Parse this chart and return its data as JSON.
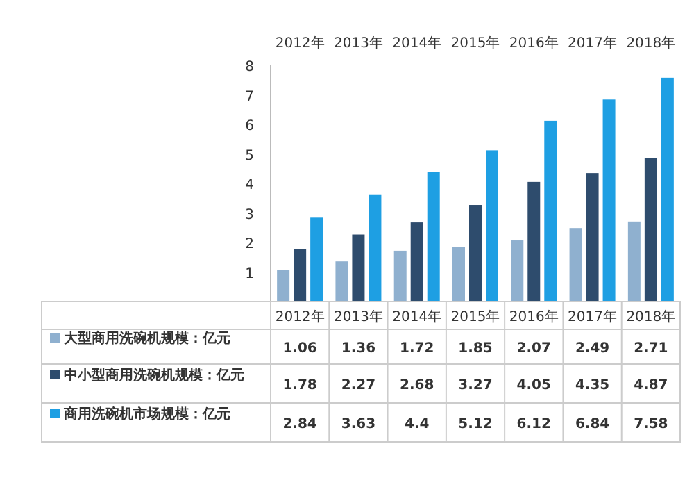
{
  "chart_data": {
    "type": "bar",
    "categories": [
      "2012年",
      "2013年",
      "2014年",
      "2015年",
      "2016年",
      "2017年",
      "2018年"
    ],
    "series": [
      {
        "name": "大型商用洗碗机规模：亿元",
        "color": "#8fb0cf",
        "values": [
          1.06,
          1.36,
          1.72,
          1.85,
          2.07,
          2.49,
          2.71
        ]
      },
      {
        "name": "中小型商用洗碗机规模：亿元",
        "color": "#2e4c6d",
        "values": [
          1.78,
          2.27,
          2.68,
          3.27,
          4.05,
          4.35,
          4.87
        ]
      },
      {
        "name": "商用洗碗机市场规模：亿元",
        "color": "#1e9fe3",
        "values": [
          2.84,
          3.63,
          4.4,
          5.12,
          6.12,
          6.84,
          7.58
        ]
      }
    ],
    "ylim": [
      0,
      8
    ],
    "yticks": [
      1,
      2,
      3,
      4,
      5,
      6,
      7,
      8
    ],
    "data_labels": true,
    "grid": false,
    "legend": "bottom"
  }
}
